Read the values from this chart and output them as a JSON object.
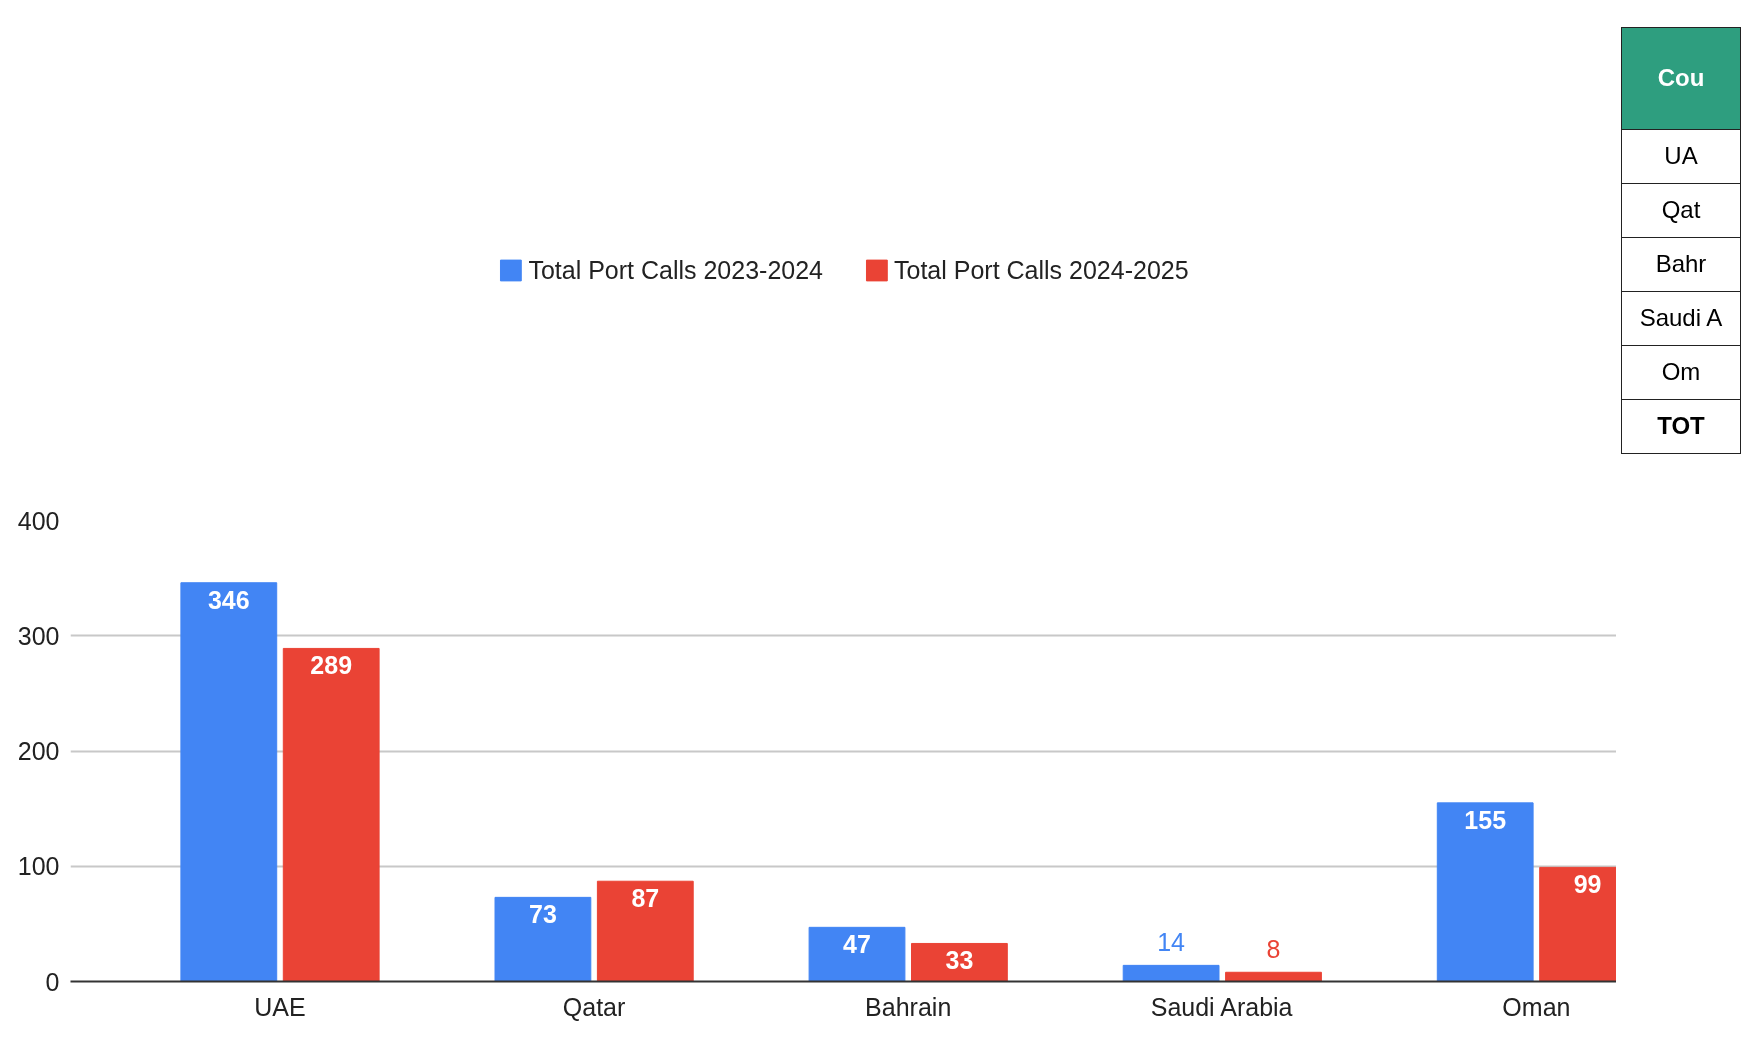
{
  "chart_data": {
    "type": "bar",
    "categories": [
      "UAE",
      "Qatar",
      "Bahrain",
      "Saudi Arabia",
      "Oman"
    ],
    "series": [
      {
        "name": "Total Port Calls 2023-2024",
        "color": "#4285f4",
        "values": [
          346,
          73,
          47,
          14,
          155
        ]
      },
      {
        "name": "Total Port Calls 2024-2025",
        "color": "#ea4335",
        "values": [
          289,
          87,
          33,
          8,
          99
        ]
      }
    ],
    "ylim": [
      0,
      400
    ],
    "yticks": [
      0,
      100,
      200,
      300,
      400
    ],
    "grid": "y",
    "legend": "top",
    "data_labels": true,
    "annotations": [
      "Cou",
      "UA",
      "Qat",
      "Bahr",
      "Saudi A",
      "Om",
      "TOT"
    ]
  }
}
